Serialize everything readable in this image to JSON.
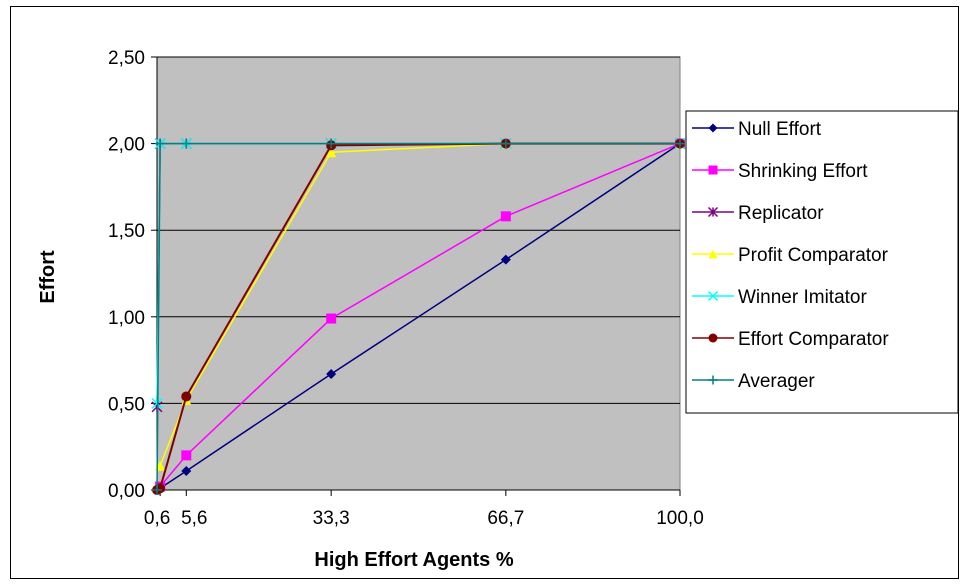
{
  "chart_data": {
    "type": "line",
    "title": "",
    "xlabel": "High Effort Agents %",
    "ylabel": "Effort",
    "x_scale": "linear",
    "xlim": [
      0,
      100
    ],
    "ylim": [
      0,
      2.5
    ],
    "x_ticks": [
      {
        "value": 0.6,
        "label": "0,6"
      },
      {
        "value": 5.6,
        "label": "5,6"
      },
      {
        "value": 33.3,
        "label": "33,3"
      },
      {
        "value": 66.7,
        "label": "66,7"
      },
      {
        "value": 100.0,
        "label": "100,0"
      }
    ],
    "y_ticks": [
      {
        "value": 0.0,
        "label": "0,00"
      },
      {
        "value": 0.5,
        "label": "0,50"
      },
      {
        "value": 1.0,
        "label": "1,00"
      },
      {
        "value": 1.5,
        "label": "1,50"
      },
      {
        "value": 2.0,
        "label": "2,00"
      },
      {
        "value": 2.5,
        "label": "2,50"
      }
    ],
    "grid": {
      "horizontal": true,
      "vertical": false
    },
    "plot_background": "#c0c0c0",
    "legend_position": "right",
    "series": [
      {
        "name": "Null Effort",
        "color": "#000080",
        "marker": "diamond",
        "x": [
          0.6,
          5.6,
          33.3,
          66.7,
          100.0
        ],
        "y": [
          0.01,
          0.11,
          0.67,
          1.33,
          2.0
        ]
      },
      {
        "name": "Shrinking Effort",
        "color": "#ff00ff",
        "marker": "square",
        "x": [
          0.6,
          5.6,
          33.3,
          66.7,
          100.0
        ],
        "y": [
          0.02,
          0.2,
          0.99,
          1.58,
          2.0
        ]
      },
      {
        "name": "Replicator",
        "color": "#800080",
        "marker": "star",
        "x": [
          0.0,
          0.6,
          5.6,
          33.3,
          66.7,
          100.0
        ],
        "y": [
          0.48,
          2.0,
          2.0,
          2.0,
          2.0,
          2.0
        ]
      },
      {
        "name": "Profit Comparator",
        "color": "#ffff00",
        "marker": "triangle",
        "x": [
          0.6,
          5.6,
          33.3,
          66.7,
          100.0
        ],
        "y": [
          0.14,
          0.52,
          1.95,
          2.0,
          2.0
        ]
      },
      {
        "name": "Winner Imitator",
        "color": "#00ffff",
        "marker": "x",
        "x": [
          0.0,
          0.6,
          5.6,
          33.3,
          66.7,
          100.0
        ],
        "y": [
          0.5,
          2.0,
          2.0,
          2.0,
          2.0,
          2.0
        ]
      },
      {
        "name": "Effort Comparator",
        "color": "#800000",
        "marker": "circle",
        "x": [
          0.0,
          0.6,
          5.6,
          33.3,
          66.7,
          100.0
        ],
        "y": [
          0.0,
          0.01,
          0.54,
          1.99,
          2.0,
          2.0
        ]
      },
      {
        "name": "Averager",
        "color": "#008080",
        "marker": "plus",
        "x": [
          0.0,
          0.6,
          5.6,
          33.3,
          66.7,
          100.0
        ],
        "y": [
          0.0,
          2.0,
          2.0,
          2.0,
          2.0,
          2.0
        ]
      }
    ]
  }
}
